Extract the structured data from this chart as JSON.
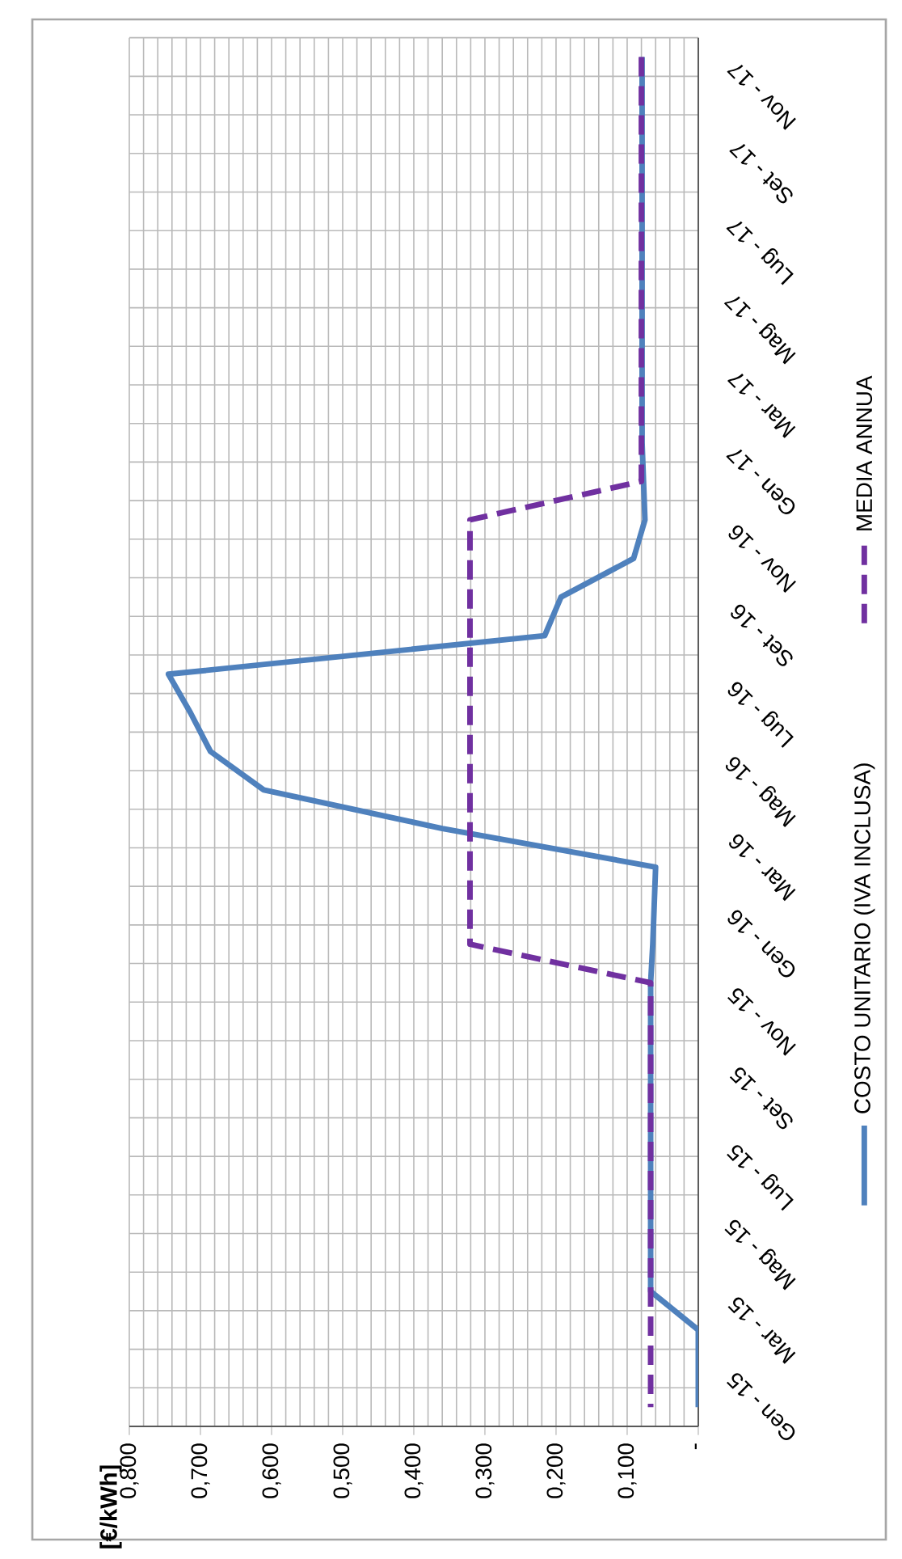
{
  "chart_data": {
    "type": "line",
    "orientation": "horizontal",
    "ylabel": "[€/kWh]",
    "categories": [
      null,
      "Nov - 17",
      null,
      "Set - 17",
      null,
      "Lug - 17",
      null,
      "Mag - 17",
      null,
      "Mar - 17",
      null,
      "Gen - 17",
      null,
      "Nov - 16",
      null,
      "Set - 16",
      null,
      "Lug - 16",
      null,
      "Mag - 16",
      null,
      "Mar - 16",
      null,
      "Gen - 16",
      null,
      "Nov - 15",
      null,
      "Set - 15",
      null,
      "Lug - 15",
      null,
      "Mag - 15",
      null,
      "Mar - 15",
      null,
      "Gen - 15"
    ],
    "series": [
      {
        "name": "COSTO UNITARIO (IVA INCLUSA)",
        "color": "#4f81bd",
        "line_style": "solid",
        "values": [
          0.079,
          0.079,
          0.079,
          0.079,
          0.079,
          0.079,
          0.079,
          0.079,
          0.079,
          0.079,
          0.079,
          0.077,
          0.075,
          0.091,
          0.193,
          0.216,
          0.745,
          0.714,
          0.686,
          0.611,
          0.36,
          0.06,
          0.062,
          0.064,
          0.067,
          0.067,
          0.067,
          0.067,
          0.067,
          0.067,
          0.067,
          0.067,
          0.067,
          0,
          0,
          0
        ]
      },
      {
        "name": "MEDIA ANNUA",
        "color": "#7030a0",
        "line_style": "dashed",
        "values": [
          0.08,
          0.08,
          0.08,
          0.08,
          0.08,
          0.08,
          0.08,
          0.08,
          0.08,
          0.08,
          0.08,
          0.08,
          0.321,
          0.321,
          0.321,
          0.321,
          0.321,
          0.321,
          0.321,
          0.321,
          0.321,
          0.321,
          0.321,
          0.321,
          0.067,
          0.067,
          0.067,
          0.067,
          0.067,
          0.067,
          0.067,
          0.067,
          0.067,
          0.067,
          0.067,
          0.067
        ]
      }
    ],
    "xlim": [
      0.8,
      0
    ],
    "xticks": [
      {
        "value": 0,
        "label": "-"
      },
      {
        "value": 0.1,
        "label": "0,100"
      },
      {
        "value": 0.2,
        "label": "0,200"
      },
      {
        "value": 0.3,
        "label": "0,300"
      },
      {
        "value": 0.4,
        "label": "0,400"
      },
      {
        "value": 0.5,
        "label": "0,500"
      },
      {
        "value": 0.6,
        "label": "0,600"
      },
      {
        "value": 0.7,
        "label": "0,700"
      },
      {
        "value": 0.8,
        "label": "0,800"
      }
    ],
    "grid": true,
    "legend": "right"
  }
}
